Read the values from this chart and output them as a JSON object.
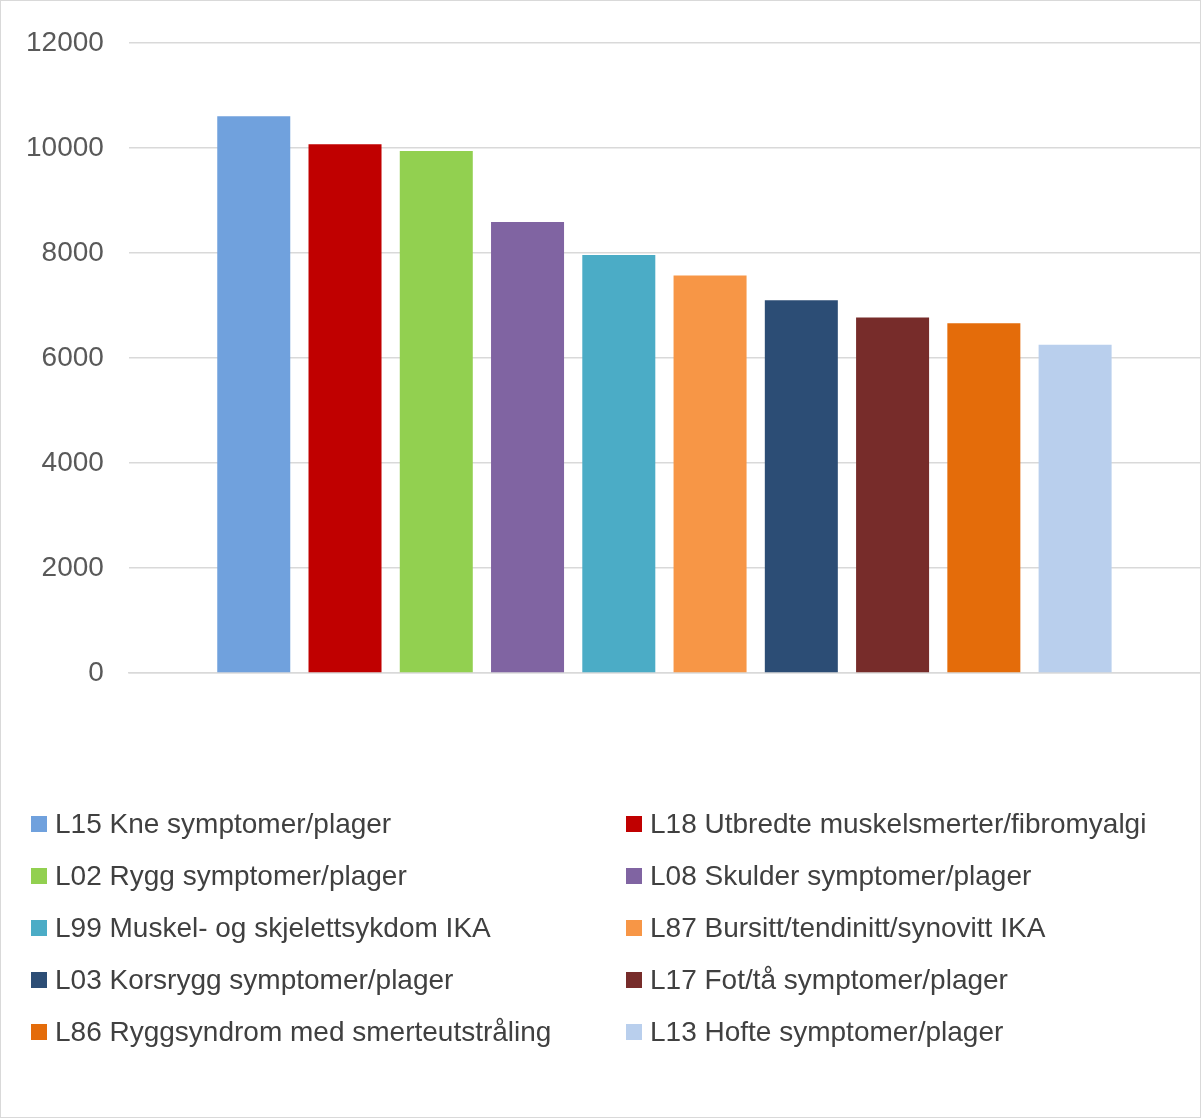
{
  "chart_data": {
    "type": "bar",
    "categories": [
      null
    ],
    "series": [
      {
        "name": "L15 Kne symptomer/plager",
        "color": "#70a1dd",
        "values": [
          10600
        ]
      },
      {
        "name": "L18 Utbredte muskelsmerter/fibromyalgi",
        "color": "#c00000",
        "values": [
          10070
        ]
      },
      {
        "name": "L02 Rygg symptomer/plager",
        "color": "#92d050",
        "values": [
          9940
        ]
      },
      {
        "name": "L08 Skulder symptomer/plager",
        "color": "#8064a2",
        "values": [
          8590
        ]
      },
      {
        "name": "L99 Muskel- og skjelettsykdom IKA",
        "color": "#4bacc6",
        "values": [
          7960
        ]
      },
      {
        "name": "L87 Bursitt/tendinitt/synovitt IKA",
        "color": "#f79646",
        "values": [
          7570
        ]
      },
      {
        "name": "L03 Korsrygg symptomer/plager",
        "color": "#2c4d75",
        "values": [
          7100
        ]
      },
      {
        "name": "L17 Fot/tå symptomer/plager",
        "color": "#772c2a",
        "values": [
          6770
        ]
      },
      {
        "name": "L86 Ryggsyndrom med smerteutstråling",
        "color": "#e46c0a",
        "values": [
          6660
        ]
      },
      {
        "name": "L13 Hofte symptomer/plager",
        "color": "#b9cfed",
        "values": [
          6250
        ]
      }
    ],
    "ylim": [
      0,
      12000
    ],
    "yticks": [
      0,
      2000,
      4000,
      6000,
      8000,
      10000,
      12000
    ],
    "grid": "y",
    "legend": "bottom"
  }
}
